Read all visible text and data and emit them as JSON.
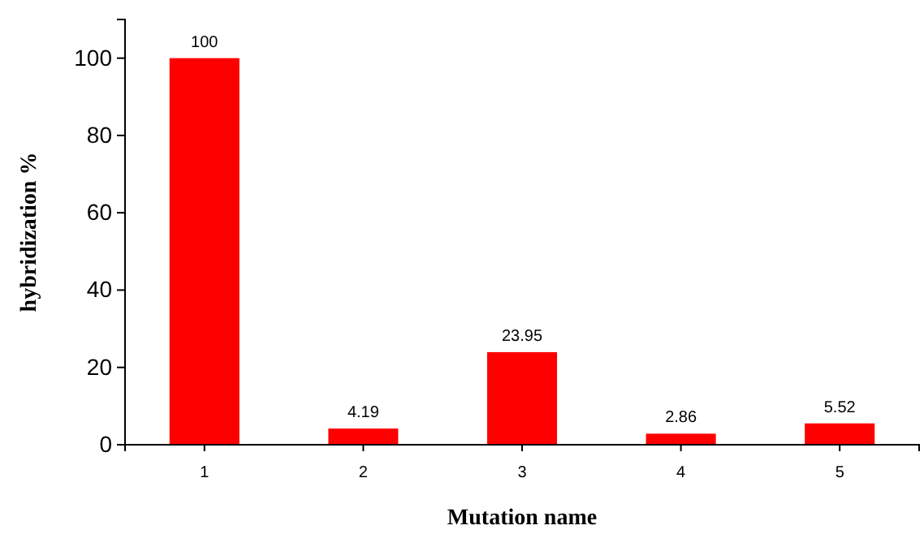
{
  "chart_data": {
    "type": "bar",
    "xlabel": "Mutation name",
    "ylabel": "hybridization %",
    "categories": [
      "1",
      "2",
      "3",
      "4",
      "5"
    ],
    "values": [
      100,
      4.19,
      23.95,
      2.86,
      5.52
    ],
    "value_labels": [
      "100",
      "4.19",
      "23.95",
      "2.86",
      "5.52"
    ],
    "color": "#ff0000",
    "ylim": [
      0,
      110
    ],
    "yticks": [
      0,
      20,
      40,
      60,
      80,
      100
    ],
    "grid": false
  }
}
